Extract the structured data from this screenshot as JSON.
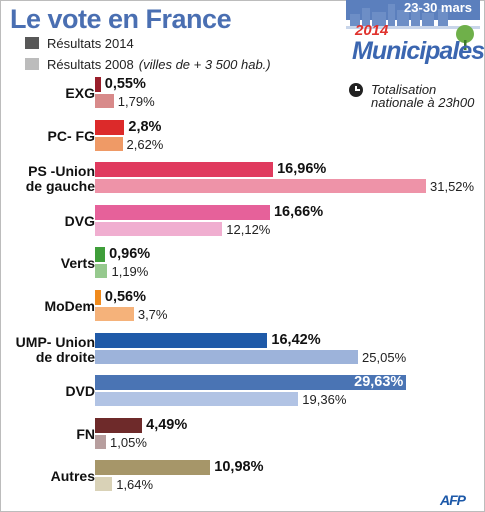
{
  "chart_data": {
    "type": "bar",
    "orientation": "horizontal",
    "title": "Le vote en France",
    "badge": {
      "dates": "23-30 mars",
      "year": "2014",
      "word": "Municipales"
    },
    "note": "Totalisation nationale à 23h00",
    "legend": [
      {
        "label": "Résultats 2014",
        "note": "",
        "color": "#585858"
      },
      {
        "label": "Résultats 2008",
        "note": "(villes de + 3 500 hab.)",
        "color": "#bcbcbc"
      }
    ],
    "categories": [
      "EXG",
      "PC- FG",
      "PS -Union de gauche",
      "DVG",
      "Verts",
      "MoDem",
      "UMP- Union de droite",
      "DVD",
      "FN",
      "Autres"
    ],
    "category_lines": [
      [
        "EXG"
      ],
      [
        "PC- FG"
      ],
      [
        "PS -Union",
        "de gauche"
      ],
      [
        "DVG"
      ],
      [
        "Verts"
      ],
      [
        "MoDem"
      ],
      [
        "UMP- Union",
        "de droite"
      ],
      [
        "DVD"
      ],
      [
        "FN"
      ],
      [
        "Autres"
      ]
    ],
    "series": [
      {
        "name": "Résultats 2014",
        "values": [
          0.55,
          2.8,
          16.96,
          16.66,
          0.96,
          0.56,
          16.42,
          29.63,
          4.49,
          10.98
        ],
        "labels": [
          "0,55%",
          "2,8%",
          "16,96%",
          "16,66%",
          "0,96%",
          "0,56%",
          "16,42%",
          "29,63%",
          "4,49%",
          "10,98%"
        ],
        "colors": [
          "#9a1f2b",
          "#dc2a2a",
          "#e03a5e",
          "#e6619a",
          "#3f9e3a",
          "#f08a1c",
          "#1f5aa8",
          "#4a74b4",
          "#6e2a2a",
          "#a69669"
        ]
      },
      {
        "name": "Résultats 2008",
        "values": [
          1.79,
          2.62,
          31.52,
          12.12,
          1.19,
          3.7,
          25.05,
          19.36,
          1.05,
          1.64
        ],
        "labels": [
          "1,79%",
          "2,62%",
          "31,52%",
          "12,12%",
          "1,19%",
          "3,7%",
          "25,05%",
          "19,36%",
          "1,05%",
          "1,64%"
        ],
        "colors": [
          "#d88a8a",
          "#ef9a66",
          "#ee93a8",
          "#f0aed0",
          "#96c98e",
          "#f5b27a",
          "#9db3da",
          "#b1c3e4",
          "#b79e9e",
          "#d9d2b7"
        ]
      }
    ],
    "xlim": [
      0,
      31.52
    ],
    "unit": "%",
    "grid": false,
    "legend_placement": "top-left"
  },
  "source": "AFP"
}
